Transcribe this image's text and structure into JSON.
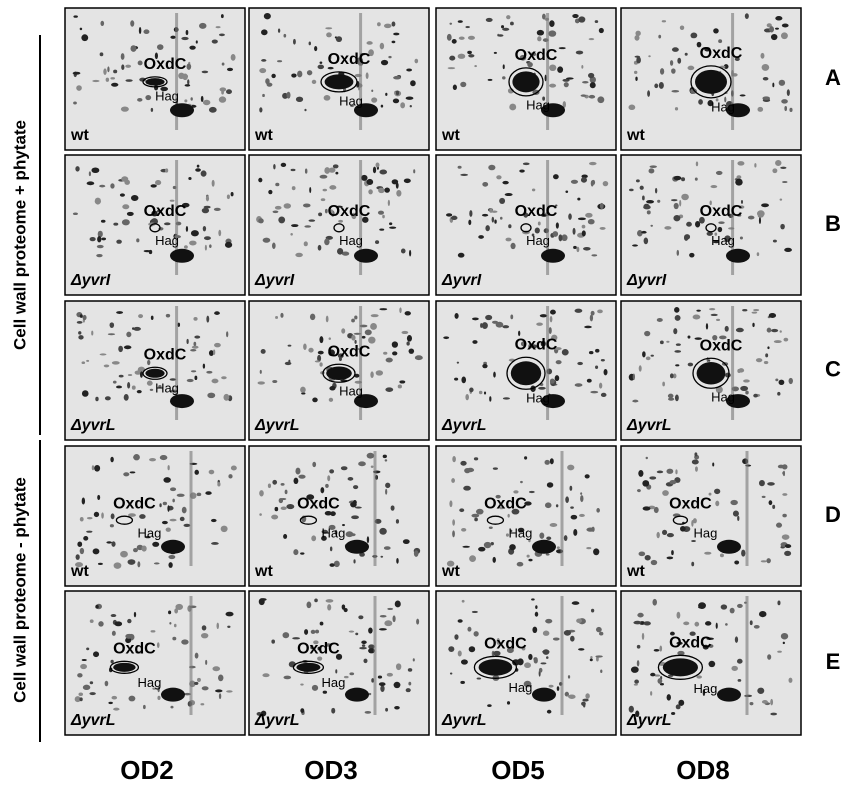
{
  "figure": {
    "side_labels": [
      "Cell wall proteome + phytate",
      "Cell wall proteome - phytate"
    ],
    "columns": [
      "OD2",
      "OD3",
      "OD5",
      "OD8"
    ],
    "protein_labels": {
      "oxdc": "OxdC",
      "hag": "Hag"
    },
    "rows": [
      {
        "letter": "A",
        "strain": "wt"
      },
      {
        "letter": "B",
        "strain": "ΔyvrI"
      },
      {
        "letter": "C",
        "strain": "ΔyvrL"
      },
      {
        "letter": "D",
        "strain": "wt"
      },
      {
        "letter": "E",
        "strain": "ΔyvrL"
      }
    ]
  }
}
